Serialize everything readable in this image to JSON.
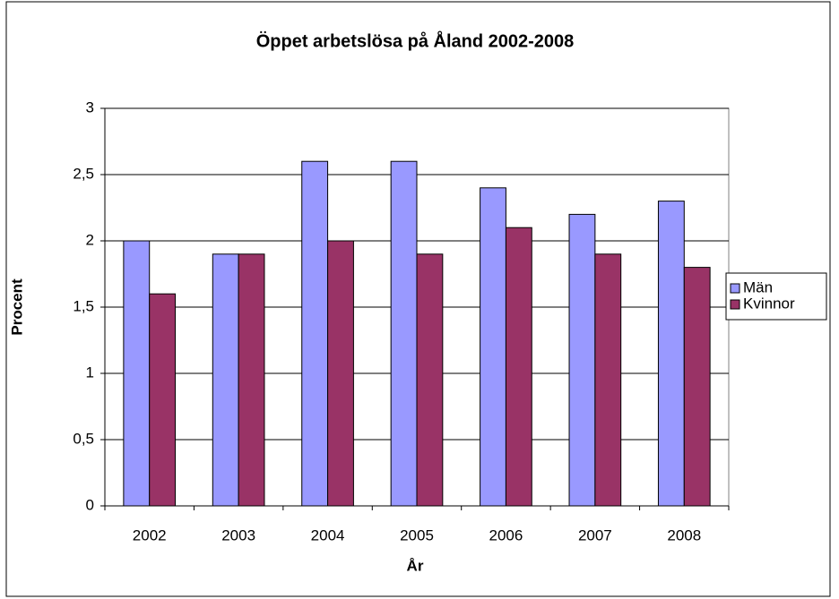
{
  "chart_data": {
    "type": "bar",
    "title": "Öppet arbetslösa på Åland 2002-2008",
    "x_label": "År",
    "y_label": "Procent",
    "categories": [
      "2002",
      "2003",
      "2004",
      "2005",
      "2006",
      "2007",
      "2008"
    ],
    "series": [
      {
        "name": "Män",
        "color": "#9999ff",
        "values": [
          2.0,
          1.9,
          2.6,
          2.6,
          2.4,
          2.2,
          2.3
        ]
      },
      {
        "name": "Kvinnor",
        "color": "#993366",
        "values": [
          1.6,
          1.9,
          2.0,
          1.9,
          2.1,
          1.9,
          1.8
        ]
      }
    ],
    "ylim": [
      0,
      3
    ],
    "yticks": [
      0,
      {
        "value": 0.5,
        "label": "0,5"
      },
      1,
      {
        "value": 1.5,
        "label": "1,5"
      },
      2,
      {
        "value": 2.5,
        "label": "2,5"
      },
      3
    ],
    "grid": true,
    "legend": "right"
  }
}
